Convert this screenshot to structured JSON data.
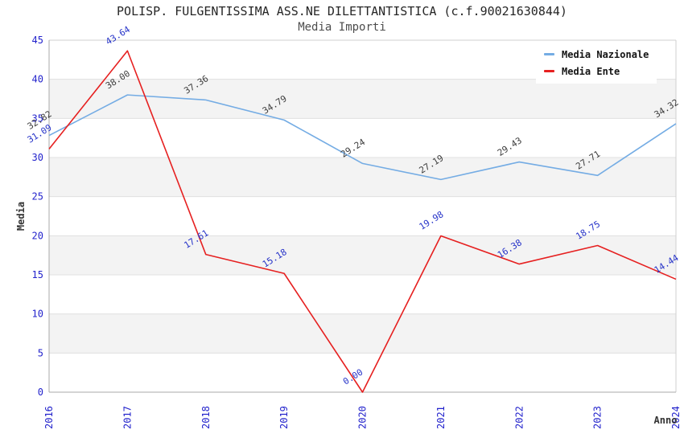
{
  "chart_data": {
    "type": "line",
    "title": "POLISP. FULGENTISSIMA ASS.NE DILETTANTISTICA (c.f.90021630844)",
    "subtitle": "Media Importi",
    "xlabel": "Anno",
    "ylabel": "Media",
    "x": [
      2016,
      2017,
      2018,
      2019,
      2020,
      2021,
      2022,
      2023,
      2024
    ],
    "ylim": [
      0,
      45
    ],
    "ytick_step": 5,
    "grid": "horizontal-bands",
    "legend_position": "top-right",
    "series": [
      {
        "name": "Media Nazionale",
        "color": "#74ACE4",
        "label_color": "#3C3C3C",
        "values": [
          32.82,
          38.0,
          37.36,
          34.79,
          29.24,
          27.19,
          29.43,
          27.71,
          34.32
        ]
      },
      {
        "name": "Media Ente",
        "color": "#E62020",
        "label_color": "#2431C8",
        "values": [
          31.09,
          43.64,
          17.61,
          15.18,
          0.0,
          19.98,
          16.38,
          18.75,
          14.44
        ]
      }
    ],
    "style": {
      "tick_color": "#2323CC",
      "band_color": "#F3F3F3",
      "grid_color": "#E0E0E0",
      "axis_color": "#A8A8A8",
      "border_color": "#CFCFCF",
      "axis_title_color": "#333333"
    }
  }
}
